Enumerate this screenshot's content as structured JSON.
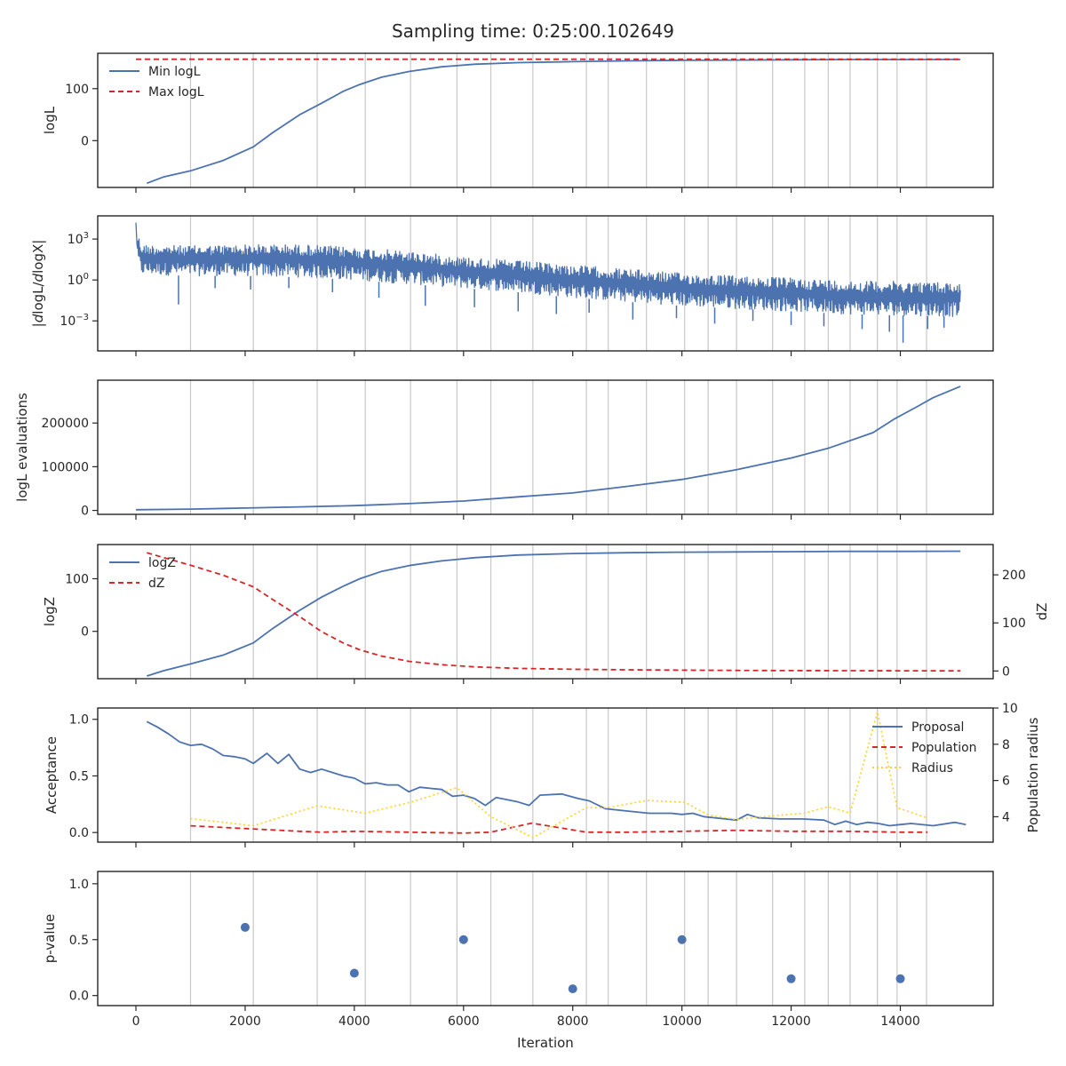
{
  "figure": {
    "title": "Sampling time: 0:25:00.102649",
    "xlabel": "Iteration",
    "x_ticks": [
      0,
      2000,
      4000,
      6000,
      8000,
      10000,
      12000,
      14000
    ],
    "x_range": [
      -700,
      15700
    ],
    "vlines": [
      1000,
      2150,
      3320,
      4200,
      5030,
      5880,
      6500,
      7270,
      8250,
      8650,
      9350,
      10050,
      10480,
      11000,
      11660,
      12250,
      12680,
      13080,
      13580,
      13940,
      14480
    ],
    "colors": {
      "blue": "#4c72b0",
      "red": "#d62728",
      "yellow": "#ffd21f",
      "grid": "#c8c8c8",
      "frame": "#262626"
    }
  },
  "chart_data": [
    {
      "id": "logl",
      "type": "line",
      "ylabel": "logL",
      "ylim": [
        -90,
        168
      ],
      "yticks": [
        {
          "v": 0,
          "label": "0"
        },
        {
          "v": 100,
          "label": "100"
        }
      ],
      "legend": "top-left",
      "series": [
        {
          "name": "Min logL",
          "color": "blue",
          "dash": "",
          "x": [
            200,
            500,
            1000,
            1600,
            2150,
            2500,
            3000,
            3400,
            3800,
            4100,
            4500,
            5000,
            5600,
            6200,
            7000,
            8000,
            9000,
            10000,
            11000,
            12000,
            13000,
            14000,
            15100
          ],
          "y": [
            -82,
            -70,
            -58,
            -38,
            -12,
            15,
            50,
            72,
            95,
            108,
            122,
            133,
            142,
            147,
            150,
            152,
            153.5,
            154.5,
            155,
            155.5,
            156,
            156,
            156.2
          ]
        },
        {
          "name": "Max logL",
          "color": "red",
          "dash": "6,4",
          "x": [
            0,
            15100
          ],
          "y": [
            156.5,
            156.5
          ]
        }
      ]
    },
    {
      "id": "dlogl",
      "type": "line",
      "ylabel": "|dlogL/dlogX|",
      "ylabel_math": {
        "pre": "|",
        "num": "d",
        "numrest": "logL/",
        "den": "d",
        "denrest": "logX",
        "post": "|"
      },
      "scale": "log10",
      "ylim": [
        -5.2,
        4.7
      ],
      "yticks": [
        {
          "v": 3,
          "base": "10",
          "exp": "3"
        },
        {
          "v": 0,
          "base": "10",
          "exp": "0"
        },
        {
          "v": -3,
          "base": "10",
          "exp": "−3"
        }
      ],
      "series": [
        {
          "name": "",
          "color": "blue",
          "kind": "noisy-band",
          "x_start": 0,
          "x_end": 15100,
          "env_x": [
            0,
            100,
            1000,
            2000,
            3000,
            4000,
            5000,
            6000,
            7000,
            8000,
            9000,
            10000,
            11000,
            12000,
            13000,
            14000,
            15100
          ],
          "env_top": [
            3.8,
            2.6,
            2.5,
            2.6,
            2.6,
            2.4,
            2.1,
            1.7,
            1.4,
            1.1,
            0.8,
            0.5,
            0.3,
            0.15,
            -0.05,
            -0.1,
            -0.2
          ],
          "env_low": [
            1.8,
            0.4,
            0.3,
            0.3,
            0.2,
            0.0,
            -0.3,
            -0.6,
            -0.9,
            -1.3,
            -1.6,
            -1.9,
            -2.1,
            -2.3,
            -2.5,
            -2.6,
            -2.7
          ],
          "spikes_x": [
            780,
            1450,
            2100,
            2800,
            3600,
            4450,
            5300,
            6200,
            7000,
            7700,
            8300,
            9100,
            9900,
            10600,
            11300,
            12000,
            12600,
            13300,
            13800,
            14050,
            14500,
            14800
          ],
          "spikes_y": [
            -1.8,
            -0.6,
            -0.7,
            -0.6,
            -0.9,
            -1.3,
            -1.9,
            -2.0,
            -2.3,
            -2.5,
            -2.4,
            -2.9,
            -2.8,
            -3.2,
            -3.0,
            -3.3,
            -3.4,
            -3.6,
            -3.8,
            -4.6,
            -3.6,
            -3.5
          ]
        }
      ]
    },
    {
      "id": "nlike",
      "type": "line",
      "ylabel": "logL evaluations",
      "ylim": [
        -9000,
        298000
      ],
      "yticks": [
        {
          "v": 0,
          "label": "0"
        },
        {
          "v": 100000,
          "label": "100000"
        },
        {
          "v": 200000,
          "label": "200000"
        }
      ],
      "series": [
        {
          "name": "",
          "color": "blue",
          "dash": "",
          "x": [
            0,
            1000,
            2000,
            3000,
            4000,
            5000,
            6000,
            7000,
            8000,
            9000,
            10000,
            11000,
            12000,
            12700,
            13500,
            13900,
            14300,
            14600,
            15100
          ],
          "y": [
            1500,
            3000,
            5500,
            8000,
            11000,
            15500,
            21500,
            31000,
            40000,
            55000,
            71000,
            93000,
            120000,
            143000,
            178000,
            210000,
            237000,
            258000,
            284000
          ]
        }
      ]
    },
    {
      "id": "logz",
      "type": "line",
      "ylabel": "logZ",
      "ylim": [
        -90,
        165
      ],
      "yticks": [
        {
          "v": 0,
          "label": "0"
        },
        {
          "v": 100,
          "label": "100"
        }
      ],
      "y2label": "dZ",
      "y2lim": [
        -16,
        263
      ],
      "y2ticks": [
        {
          "v": 0,
          "label": "0"
        },
        {
          "v": 100,
          "label": "100"
        },
        {
          "v": 200,
          "label": "200"
        }
      ],
      "legend": "top-left",
      "series": [
        {
          "name": "logZ",
          "color": "blue",
          "dash": "",
          "axis": "left",
          "x": [
            200,
            500,
            1000,
            1600,
            2150,
            2500,
            3000,
            3400,
            3800,
            4100,
            4500,
            5000,
            5600,
            6200,
            7000,
            8000,
            9000,
            10000,
            11000,
            12000,
            13000,
            14000,
            15100
          ],
          "y": [
            -85,
            -75,
            -62,
            -45,
            -22,
            5,
            40,
            65,
            86,
            100,
            114,
            125,
            134,
            140,
            145,
            148,
            149.5,
            150.5,
            151,
            151.5,
            152,
            152,
            152.3
          ]
        },
        {
          "name": "dZ",
          "color": "red",
          "dash": "6,4",
          "axis": "right",
          "x": [
            200,
            500,
            1000,
            1600,
            2150,
            2500,
            3000,
            3400,
            3800,
            4100,
            4500,
            5000,
            5600,
            6200,
            7000,
            8000,
            9000,
            10000,
            11000,
            12000,
            13000,
            14000,
            15100
          ],
          "y": [
            246,
            236,
            220,
            199,
            175,
            149,
            113,
            82,
            58,
            44,
            31,
            20,
            13,
            8.5,
            5.5,
            3.5,
            2.5,
            1.8,
            1.2,
            0.9,
            0.6,
            0.4,
            0.3
          ]
        }
      ]
    },
    {
      "id": "accept",
      "type": "line",
      "ylabel": "Acceptance",
      "ylim": [
        -0.085,
        1.1
      ],
      "yticks": [
        {
          "v": 0,
          "label": "0.0"
        },
        {
          "v": 0.5,
          "label": "0.5"
        },
        {
          "v": 1,
          "label": "1.0"
        }
      ],
      "y2label": "Population radius",
      "y2lim": [
        2.6,
        10.0
      ],
      "y2ticks": [
        {
          "v": 4,
          "label": "4"
        },
        {
          "v": 6,
          "label": "6"
        },
        {
          "v": 8,
          "label": "8"
        },
        {
          "v": 10,
          "label": "10"
        }
      ],
      "legend": "top-right",
      "series": [
        {
          "name": "Proposal",
          "color": "blue",
          "dash": "",
          "axis": "left",
          "x": [
            200,
            400,
            600,
            800,
            1000,
            1200,
            1400,
            1600,
            1800,
            2000,
            2150,
            2400,
            2600,
            2800,
            3000,
            3200,
            3400,
            3600,
            3800,
            4000,
            4200,
            4400,
            4600,
            4800,
            5000,
            5200,
            5400,
            5600,
            5800,
            6000,
            6200,
            6400,
            6600,
            6800,
            7000,
            7200,
            7400,
            7800,
            8100,
            8300,
            8600,
            9000,
            9400,
            9800,
            10000,
            10200,
            10400,
            10600,
            11000,
            11200,
            11400,
            11800,
            12200,
            12600,
            12800,
            13000,
            13200,
            13400,
            13600,
            13800,
            14000,
            14200,
            14600,
            15000,
            15200
          ],
          "y": [
            0.98,
            0.93,
            0.87,
            0.8,
            0.77,
            0.78,
            0.74,
            0.68,
            0.67,
            0.65,
            0.61,
            0.7,
            0.61,
            0.69,
            0.56,
            0.53,
            0.56,
            0.53,
            0.5,
            0.48,
            0.43,
            0.44,
            0.42,
            0.42,
            0.36,
            0.4,
            0.39,
            0.38,
            0.32,
            0.33,
            0.3,
            0.24,
            0.31,
            0.29,
            0.27,
            0.24,
            0.33,
            0.34,
            0.3,
            0.28,
            0.21,
            0.19,
            0.17,
            0.17,
            0.16,
            0.17,
            0.14,
            0.13,
            0.11,
            0.16,
            0.13,
            0.12,
            0.12,
            0.11,
            0.07,
            0.1,
            0.07,
            0.09,
            0.08,
            0.06,
            0.07,
            0.08,
            0.06,
            0.09,
            0.07
          ]
        },
        {
          "name": "Population",
          "color": "red",
          "dash": "6,4",
          "axis": "right",
          "x": [
            1000,
            2000,
            3000,
            3400,
            4000,
            5000,
            6000,
            6500,
            7250,
            8250,
            9000,
            10000,
            11000,
            12000,
            13000,
            14000,
            14500
          ],
          "y": [
            3.5,
            3.35,
            3.2,
            3.15,
            3.2,
            3.15,
            3.1,
            3.15,
            3.65,
            3.15,
            3.15,
            3.2,
            3.25,
            3.2,
            3.2,
            3.15,
            3.15
          ]
        },
        {
          "name": "Radius",
          "color": "yellow",
          "dash": "2,3",
          "axis": "right",
          "x": [
            1000,
            2150,
            3320,
            4200,
            5030,
            5880,
            6500,
            7270,
            8250,
            8650,
            9350,
            10050,
            10480,
            11000,
            11660,
            12250,
            12680,
            13080,
            13580,
            13940,
            14480
          ],
          "y": [
            3.9,
            3.5,
            4.6,
            4.2,
            4.8,
            5.6,
            4.0,
            2.85,
            4.5,
            4.5,
            4.9,
            4.8,
            4.1,
            3.85,
            4.05,
            4.2,
            4.55,
            4.2,
            9.8,
            4.5,
            3.95
          ]
        }
      ]
    },
    {
      "id": "pvalue",
      "type": "scatter",
      "ylabel": "p-value",
      "ylim": [
        -0.09,
        1.11
      ],
      "yticks": [
        {
          "v": 0,
          "label": "0.0"
        },
        {
          "v": 0.5,
          "label": "0.5"
        },
        {
          "v": 1,
          "label": "1.0"
        }
      ],
      "series": [
        {
          "name": "",
          "color": "blue",
          "x": [
            2000,
            4000,
            6000,
            8000,
            10000,
            12000,
            14000
          ],
          "y": [
            0.61,
            0.2,
            0.5,
            0.06,
            0.5,
            0.15,
            0.15
          ]
        }
      ]
    }
  ]
}
